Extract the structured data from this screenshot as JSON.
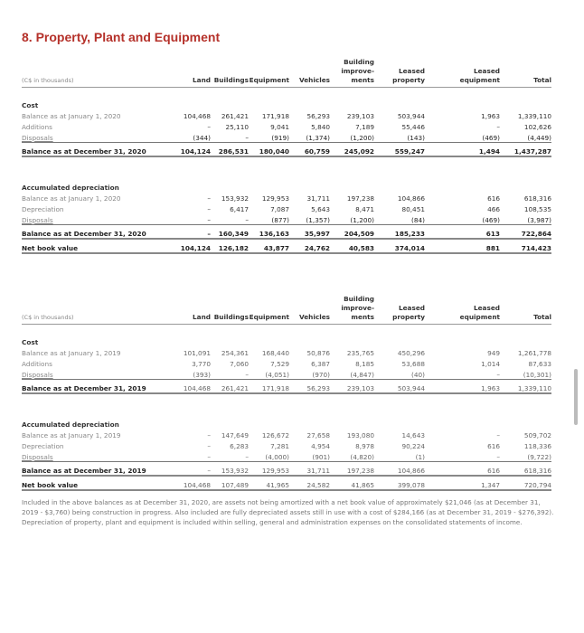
{
  "title": "8. Property, Plant and Equipment",
  "columns": {
    "units": "(C$ in thousands)",
    "headers": [
      "Land",
      "Buildings",
      "Equipment",
      "Vehicles",
      "Building improve-ments",
      "Leased property",
      "Leased equipment",
      "Total"
    ]
  },
  "tables": [
    {
      "sections": [
        {
          "heading": "Cost",
          "rows": [
            {
              "label": "Balance as at January 1, 2020",
              "type": "norm",
              "values": [
                "104,468",
                "261,421",
                "171,918",
                "56,293",
                "239,103",
                "503,944",
                "1,963",
                "1,339,110"
              ]
            },
            {
              "label": "Additions",
              "type": "norm",
              "values": [
                "–",
                "25,110",
                "9,041",
                "5,840",
                "7,189",
                "55,446",
                "–",
                "102,626"
              ]
            },
            {
              "label": "Disposals",
              "type": "disp",
              "values": [
                "(344)",
                "–",
                "(919)",
                "(1,374)",
                "(1,200)",
                "(143)",
                "(469)",
                "(4,449)"
              ]
            },
            {
              "label": "Balance as at December 31, 2020",
              "type": "bal",
              "values": [
                "104,124",
                "286,531",
                "180,040",
                "60,759",
                "245,092",
                "559,247",
                "1,494",
                "1,437,287"
              ]
            }
          ]
        },
        {
          "heading": "Accumulated depreciation",
          "rows": [
            {
              "label": "Balance as at January 1, 2020",
              "type": "norm",
              "values": [
                "–",
                "153,932",
                "129,953",
                "31,711",
                "197,238",
                "104,866",
                "616",
                "618,316"
              ]
            },
            {
              "label": "Depreciation",
              "type": "norm",
              "values": [
                "–",
                "6,417",
                "7,087",
                "5,643",
                "8,471",
                "80,451",
                "466",
                "108,535"
              ]
            },
            {
              "label": "Disposals",
              "type": "disp",
              "values": [
                "–",
                "–",
                "(877)",
                "(1,357)",
                "(1,200)",
                "(84)",
                "(469)",
                "(3,987)"
              ]
            },
            {
              "label": "Balance as at December 31, 2020",
              "type": "bal",
              "values": [
                "–",
                "160,349",
                "136,163",
                "35,997",
                "204,509",
                "185,233",
                "613",
                "722,864"
              ]
            },
            {
              "label": "Net book value",
              "type": "net",
              "values": [
                "104,124",
                "126,182",
                "43,877",
                "24,762",
                "40,583",
                "374,014",
                "881",
                "714,423"
              ]
            }
          ]
        }
      ]
    },
    {
      "sections": [
        {
          "heading": "Cost",
          "rows": [
            {
              "label": "Balance as at January 1, 2019",
              "type": "norm",
              "values": [
                "101,091",
                "254,361",
                "168,440",
                "50,876",
                "235,765",
                "450,296",
                "949",
                "1,261,778"
              ]
            },
            {
              "label": "Additions",
              "type": "norm",
              "values": [
                "3,770",
                "7,060",
                "7,529",
                "6,387",
                "8,185",
                "53,688",
                "1,014",
                "87,633"
              ]
            },
            {
              "label": "Disposals",
              "type": "disp",
              "values": [
                "(393)",
                "–",
                "(4,051)",
                "(970)",
                "(4,847)",
                "(40)",
                "–",
                "(10,301)"
              ]
            },
            {
              "label": "Balance as at December 31, 2019",
              "type": "bal",
              "values": [
                "104,468",
                "261,421",
                "171,918",
                "56,293",
                "239,103",
                "503,944",
                "1,963",
                "1,339,110"
              ]
            }
          ]
        },
        {
          "heading": "Accumulated depreciation",
          "rows": [
            {
              "label": "Balance as at January 1, 2019",
              "type": "norm",
              "values": [
                "–",
                "147,649",
                "126,672",
                "27,658",
                "193,080",
                "14,643",
                "–",
                "509,702"
              ]
            },
            {
              "label": "Depreciation",
              "type": "norm",
              "values": [
                "–",
                "6,283",
                "7,281",
                "4,954",
                "8,978",
                "90,224",
                "616",
                "118,336"
              ]
            },
            {
              "label": "Disposals",
              "type": "disp",
              "values": [
                "–",
                "–",
                "(4,000)",
                "(901)",
                "(4,820)",
                "(1)",
                "–",
                "(9,722)"
              ]
            },
            {
              "label": "Balance as at December 31, 2019",
              "type": "bal",
              "values": [
                "–",
                "153,932",
                "129,953",
                "31,711",
                "197,238",
                "104,866",
                "616",
                "618,316"
              ]
            },
            {
              "label": "Net book value",
              "type": "net",
              "values": [
                "104,468",
                "107,489",
                "41,965",
                "24,582",
                "41,865",
                "399,078",
                "1,347",
                "720,794"
              ]
            }
          ]
        }
      ]
    }
  ],
  "note": "Included in the above balances as at December 31, 2020, are assets not being amortized with a net book value of approximately $21,046 (as at December 31, 2019 - $3,760) being construction in progress. Also included are fully depreciated assets still in use with a cost of $284,166 (as at December 31, 2019 - $276,392). Depreciation of property, plant and equipment is included within selling, general and administration expenses on the consolidated statements of income."
}
